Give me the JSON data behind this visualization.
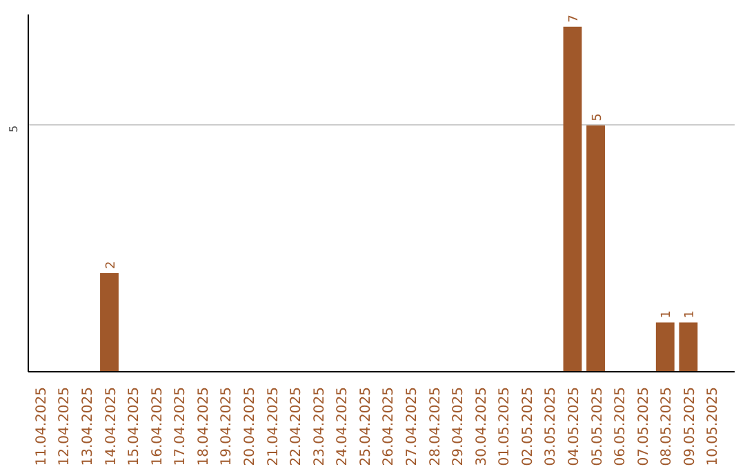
{
  "chart_data": {
    "type": "bar",
    "categories": [
      "11.04.2025",
      "12.04.2025",
      "13.04.2025",
      "14.04.2025",
      "15.04.2025",
      "16.04.2025",
      "17.04.2025",
      "18.04.2025",
      "19.04.2025",
      "20.04.2025",
      "21.04.2025",
      "22.04.2025",
      "23.04.2025",
      "24.04.2025",
      "25.04.2025",
      "26.04.2025",
      "27.04.2025",
      "28.04.2025",
      "29.04.2025",
      "30.04.2025",
      "01.05.2025",
      "02.05.2025",
      "03.05.2025",
      "04.05.2025",
      "05.05.2025",
      "06.05.2025",
      "07.05.2025",
      "08.05.2025",
      "09.05.2025",
      "10.05.2025"
    ],
    "values": [
      0,
      0,
      0,
      2,
      0,
      0,
      0,
      0,
      0,
      0,
      0,
      0,
      0,
      0,
      0,
      0,
      0,
      0,
      0,
      0,
      0,
      0,
      0,
      7,
      5,
      0,
      0,
      1,
      1,
      0
    ],
    "value_labels": [
      null,
      null,
      null,
      "2",
      null,
      null,
      null,
      null,
      null,
      null,
      null,
      null,
      null,
      null,
      null,
      null,
      null,
      null,
      null,
      null,
      null,
      null,
      null,
      "7",
      "5",
      null,
      null,
      "1",
      "1",
      null
    ],
    "color": "#a0582a",
    "ylim": [
      0,
      7.25
    ],
    "yticks": [
      5
    ],
    "grid": "y"
  }
}
